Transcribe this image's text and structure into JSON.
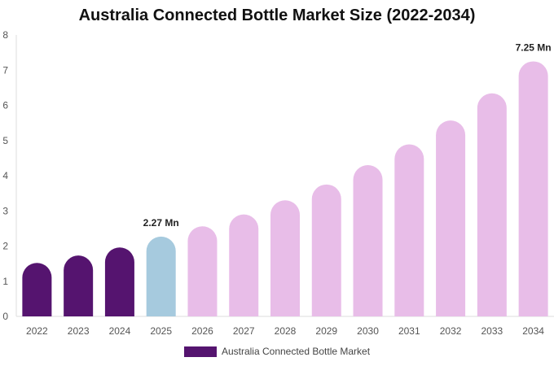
{
  "chart_data": {
    "type": "bar",
    "title": "Australia Connected Bottle Market Size (2022-2034)",
    "categories": [
      "2022",
      "2023",
      "2024",
      "2025",
      "2026",
      "2027",
      "2028",
      "2029",
      "2030",
      "2031",
      "2032",
      "2033",
      "2034"
    ],
    "series": [
      {
        "name": "Australia Connected Bottle Market",
        "values": [
          1.52,
          1.73,
          1.96,
          2.27,
          2.56,
          2.9,
          3.3,
          3.75,
          4.3,
          4.89,
          5.57,
          6.34,
          7.25
        ]
      }
    ],
    "bar_colors": [
      "#55146f",
      "#55146f",
      "#55146f",
      "#a6cade",
      "#e8bde8",
      "#e8bde8",
      "#e8bde8",
      "#e8bde8",
      "#e8bde8",
      "#e8bde8",
      "#e8bde8",
      "#e8bde8",
      "#e8bde8"
    ],
    "data_labels": [
      {
        "index": 3,
        "text": "2.27 Mn"
      },
      {
        "index": 12,
        "text": "7.25 Mn"
      }
    ],
    "ylim": [
      0,
      8
    ],
    "yticks": [
      0,
      1,
      2,
      3,
      4,
      5,
      6,
      7,
      8
    ],
    "grid": false,
    "legend": {
      "placement": "bottom",
      "label": "Australia Connected Bottle Market",
      "color": "#55146f"
    }
  }
}
